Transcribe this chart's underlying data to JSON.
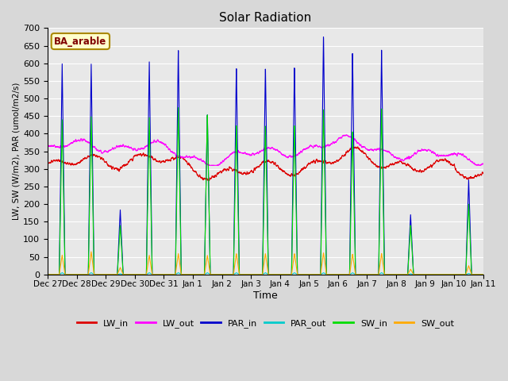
{
  "title": "Solar Radiation",
  "xlabel": "Time",
  "ylabel": "LW, SW (W/m2), PAR (umol/m2/s)",
  "ylim": [
    0,
    700
  ],
  "yticks": [
    0,
    50,
    100,
    150,
    200,
    250,
    300,
    350,
    400,
    450,
    500,
    550,
    600,
    650,
    700
  ],
  "annotation": "BA_arable",
  "annotation_bbox_fc": "#ffffcc",
  "annotation_bbox_ec": "#aa8800",
  "annotation_color": "#800000",
  "series_colors": {
    "LW_in": "#dd0000",
    "LW_out": "#ff00ff",
    "PAR_in": "#0000cc",
    "PAR_out": "#00cccc",
    "SW_in": "#00dd00",
    "SW_out": "#ffaa00"
  },
  "bg_color": "#d8d8d8",
  "plot_bg": "#e8e8e8",
  "grid_color": "#ffffff",
  "x_labels": [
    "Dec 27",
    "Dec 28",
    "Dec 29",
    "Dec 30",
    "Dec 31",
    "Jan 1",
    "Jan 2",
    "Jan 3",
    "Jan 4",
    "Jan 5",
    "Jan 6",
    "Jan 7",
    "Jan 8",
    "Jan 9",
    "Jan 10",
    "Jan 11"
  ],
  "n_days": 15,
  "par_in_peaks": [
    600,
    600,
    185,
    610,
    645,
    460,
    595,
    595,
    595,
    685,
    635,
    640,
    170,
    0,
    270
  ],
  "sw_in_peaks": [
    440,
    450,
    140,
    450,
    480,
    460,
    430,
    430,
    430,
    475,
    410,
    475,
    140,
    0,
    200
  ],
  "sw_out_peaks": [
    55,
    65,
    20,
    55,
    60,
    55,
    60,
    60,
    60,
    62,
    58,
    60,
    15,
    0,
    25
  ],
  "par_out_peaks": [
    5,
    5,
    2,
    5,
    5,
    5,
    5,
    5,
    5,
    5,
    5,
    5,
    2,
    0,
    3
  ]
}
